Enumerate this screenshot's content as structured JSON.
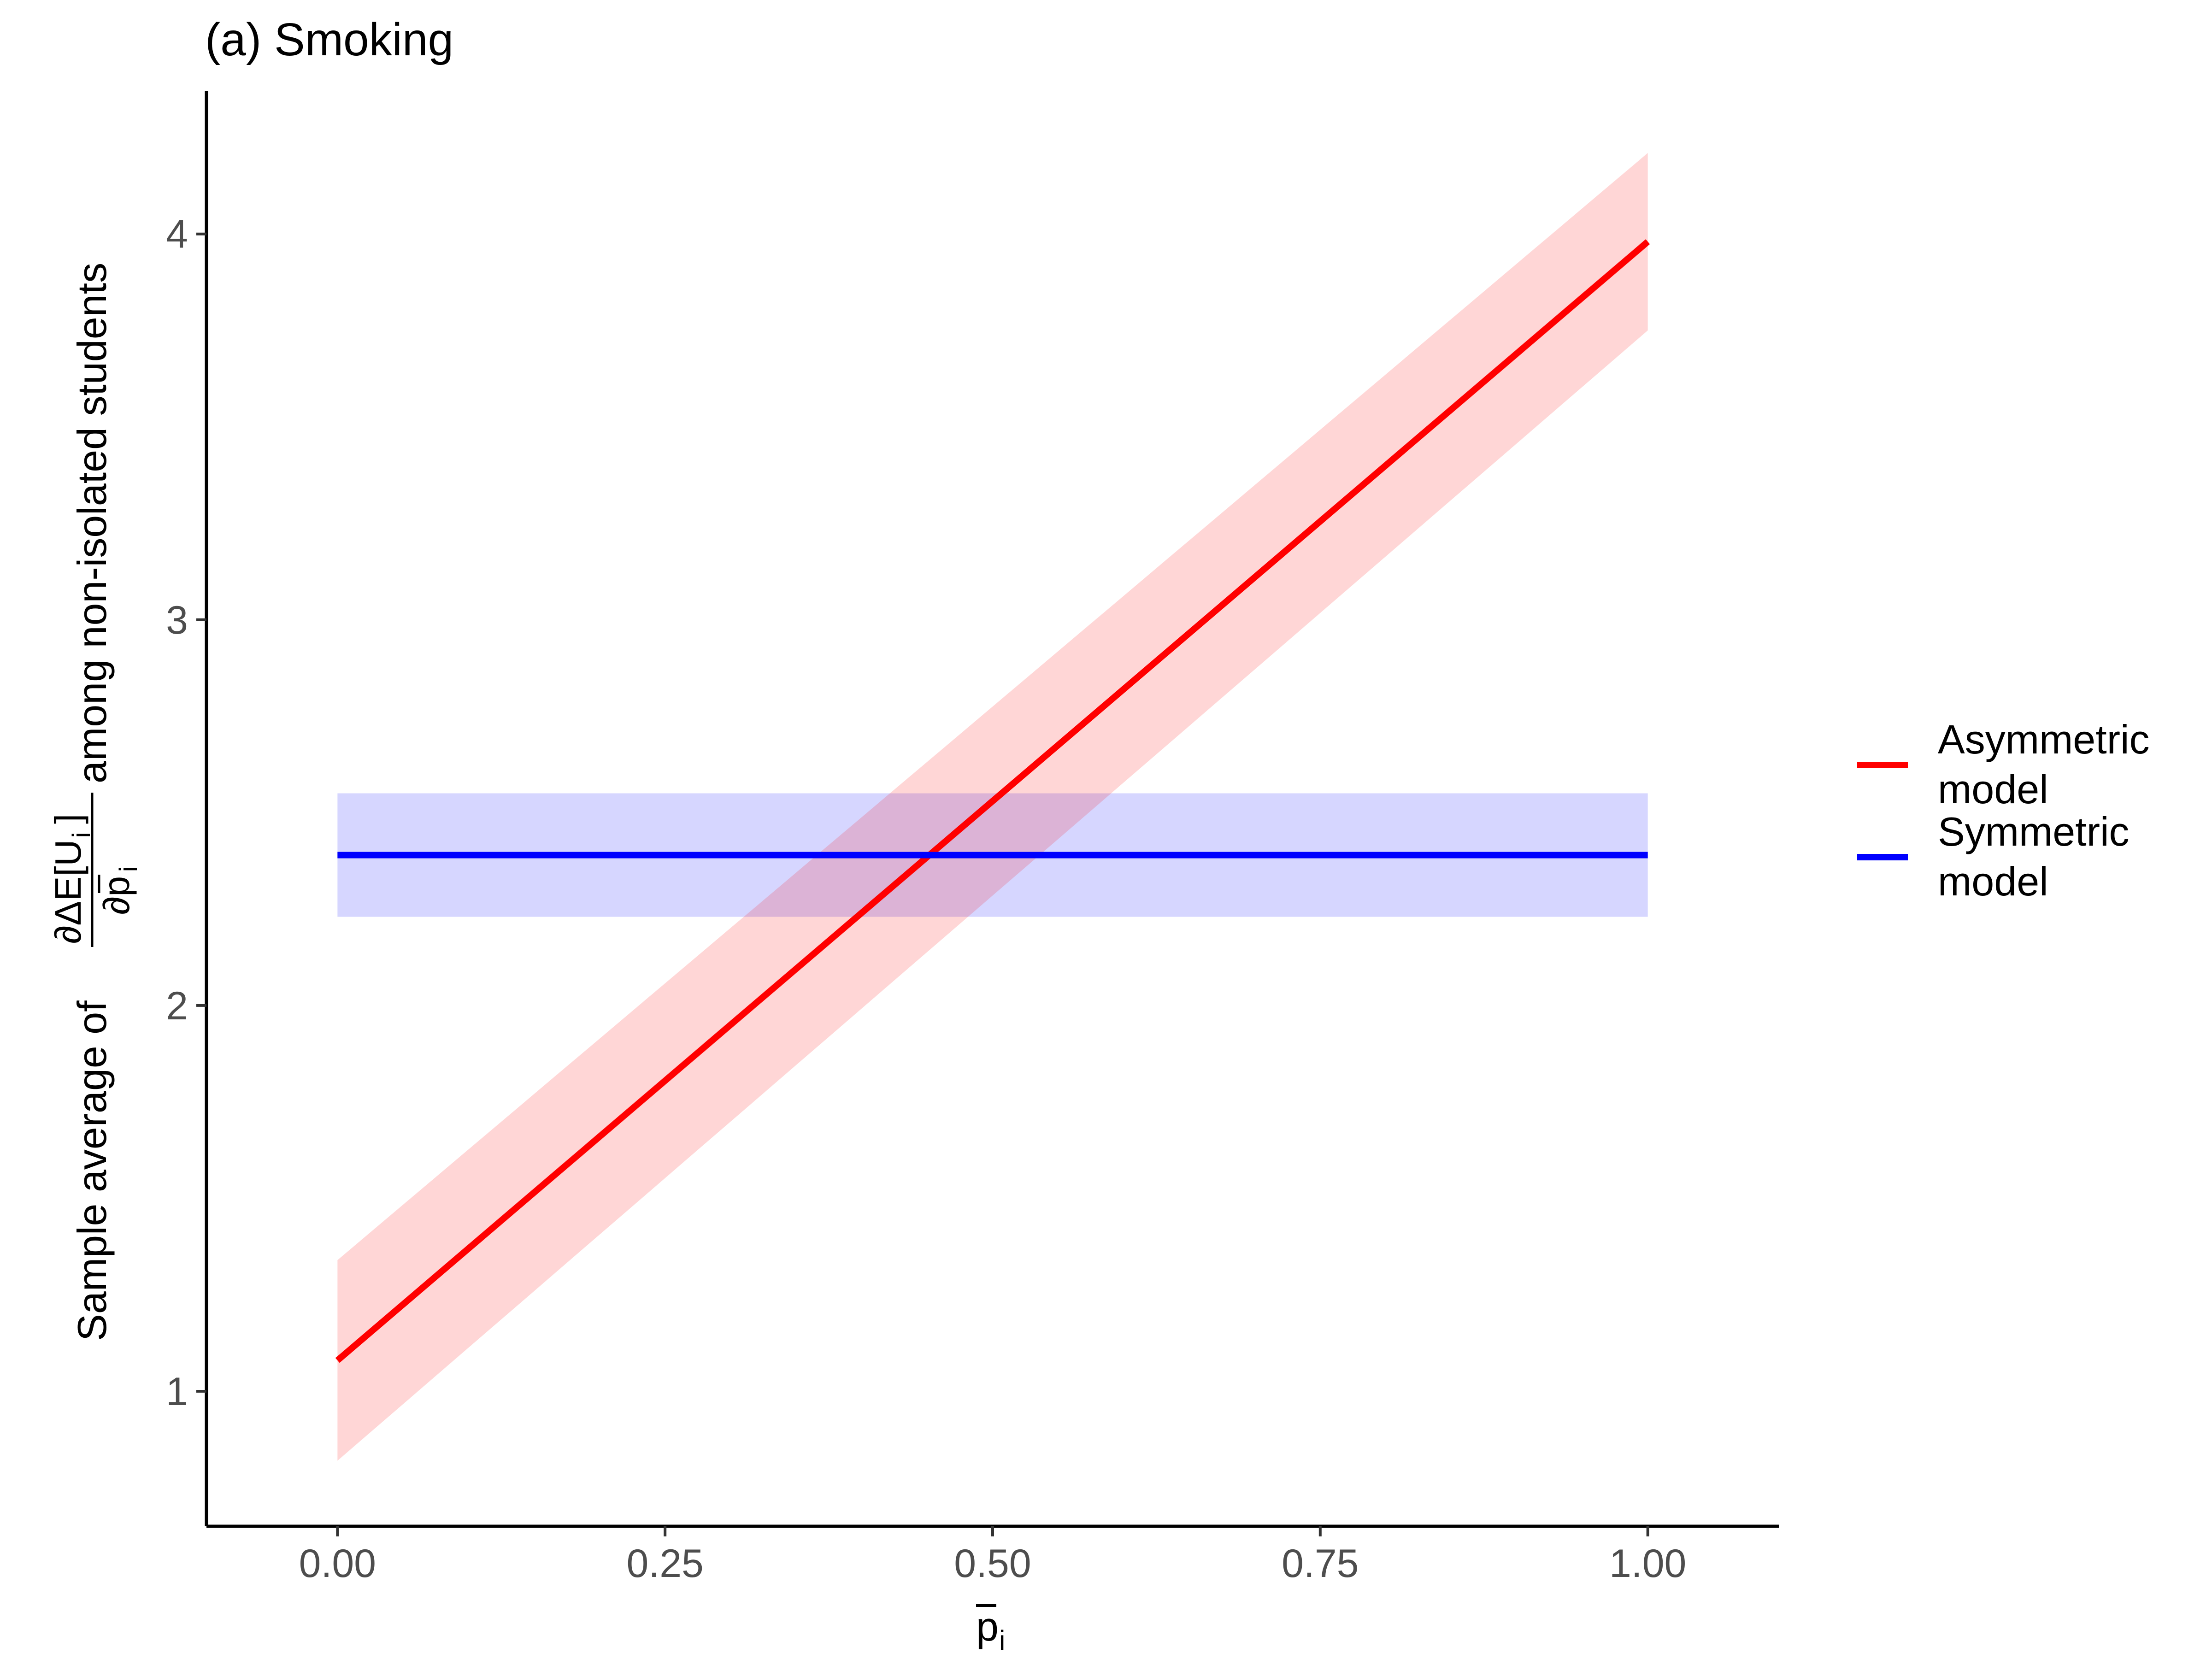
{
  "chart_data": {
    "type": "line",
    "title": "(a) Smoking",
    "xlabel": "p",
    "xlabel_subscript": "i",
    "ylabel": {
      "prefix": "Sample average of",
      "numerator": "∂ΔE[U",
      "numerator_subscript": "i",
      "numerator_close": "]",
      "denominator": "∂p",
      "denominator_subscript": "i",
      "suffix": "among non-isolated students"
    },
    "xlim": [
      -0.1,
      1.1
    ],
    "ylim": [
      0.65,
      4.37
    ],
    "x_ticks": [
      0,
      0.25,
      0.5,
      0.75,
      1
    ],
    "x_tick_labels": [
      "0.00",
      "0.25",
      "0.50",
      "0.75",
      "1.00"
    ],
    "y_ticks": [
      1,
      2,
      3,
      4
    ],
    "y_tick_labels": [
      "1",
      "2",
      "3",
      "4"
    ],
    "grid": false,
    "legend_position": "right",
    "series": [
      {
        "name": "Asymmetric model",
        "label_lines": [
          "Asymmetric",
          "model"
        ],
        "color": "#ff0000",
        "ribbon_color": "#ffd6d6",
        "x": [
          0,
          1
        ],
        "y": [
          1.08,
          3.98
        ],
        "lower": [
          0.82,
          3.75
        ],
        "upper": [
          1.34,
          4.21
        ]
      },
      {
        "name": "Symmetric model",
        "label_lines": [
          "Symmetric",
          "model"
        ],
        "color": "#0000ff",
        "ribbon_color": "#c8c8ff",
        "x": [
          0,
          1
        ],
        "y": [
          2.39,
          2.39
        ],
        "lower": [
          2.23,
          2.23
        ],
        "upper": [
          2.55,
          2.55
        ]
      }
    ]
  }
}
